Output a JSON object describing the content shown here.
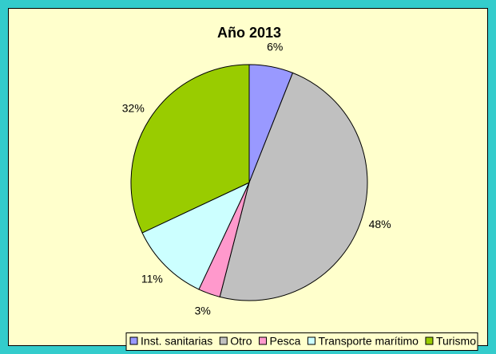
{
  "chart_data": {
    "type": "pie",
    "title": "Año 2013",
    "categories": [
      "Inst. sanitarias",
      "Otro",
      "Pesca",
      "Transporte marítimo",
      "Turismo"
    ],
    "values": [
      6,
      48,
      3,
      11,
      32
    ],
    "value_labels": [
      "6%",
      "48%",
      "3%",
      "11%",
      "32%"
    ],
    "colors": [
      "#9999ff",
      "#c0c0c0",
      "#ff99cc",
      "#ccffff",
      "#99cc00"
    ],
    "legend": "bottom"
  }
}
